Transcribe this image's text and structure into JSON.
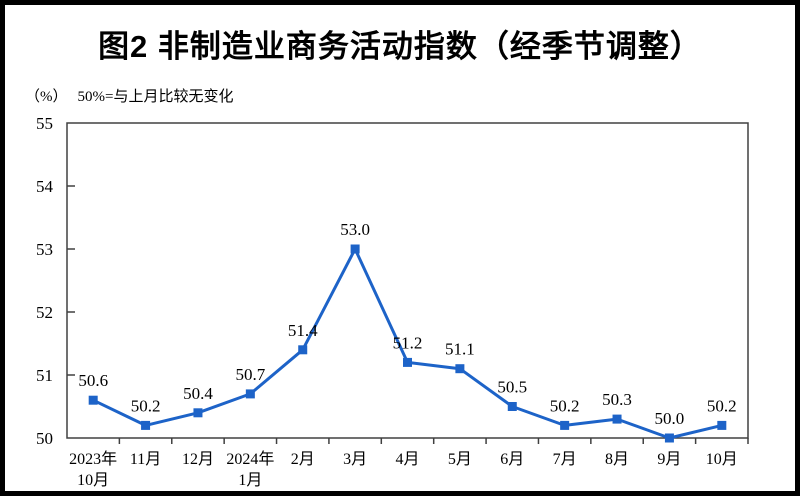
{
  "page": {
    "title": "图2 非制造业商务活动指数（经季节调整）",
    "unit_label": "（%）",
    "baseline_note": "50%=与上月比较无变化"
  },
  "chart_data": {
    "type": "line",
    "title": "图2 非制造业商务活动指数（经季节调整）",
    "unit": "（%）",
    "annotation": "50%=与上月比较无变化",
    "categories": [
      "2023年\n10月",
      "11月",
      "12月",
      "2024年\n1月",
      "2月",
      "3月",
      "4月",
      "5月",
      "6月",
      "7月",
      "8月",
      "9月",
      "10月"
    ],
    "values": [
      50.6,
      50.2,
      50.4,
      50.7,
      51.4,
      53.0,
      51.2,
      51.1,
      50.5,
      50.2,
      50.3,
      50.0,
      50.2
    ],
    "ylim": [
      50,
      55
    ],
    "y_ticks": [
      50,
      51,
      52,
      53,
      54,
      55
    ],
    "grid": false,
    "legend_position": "none",
    "marker": "square",
    "data_labels": true,
    "line_color": "#1d63c8",
    "frame_color": "#404040",
    "text_color": "#000000"
  }
}
